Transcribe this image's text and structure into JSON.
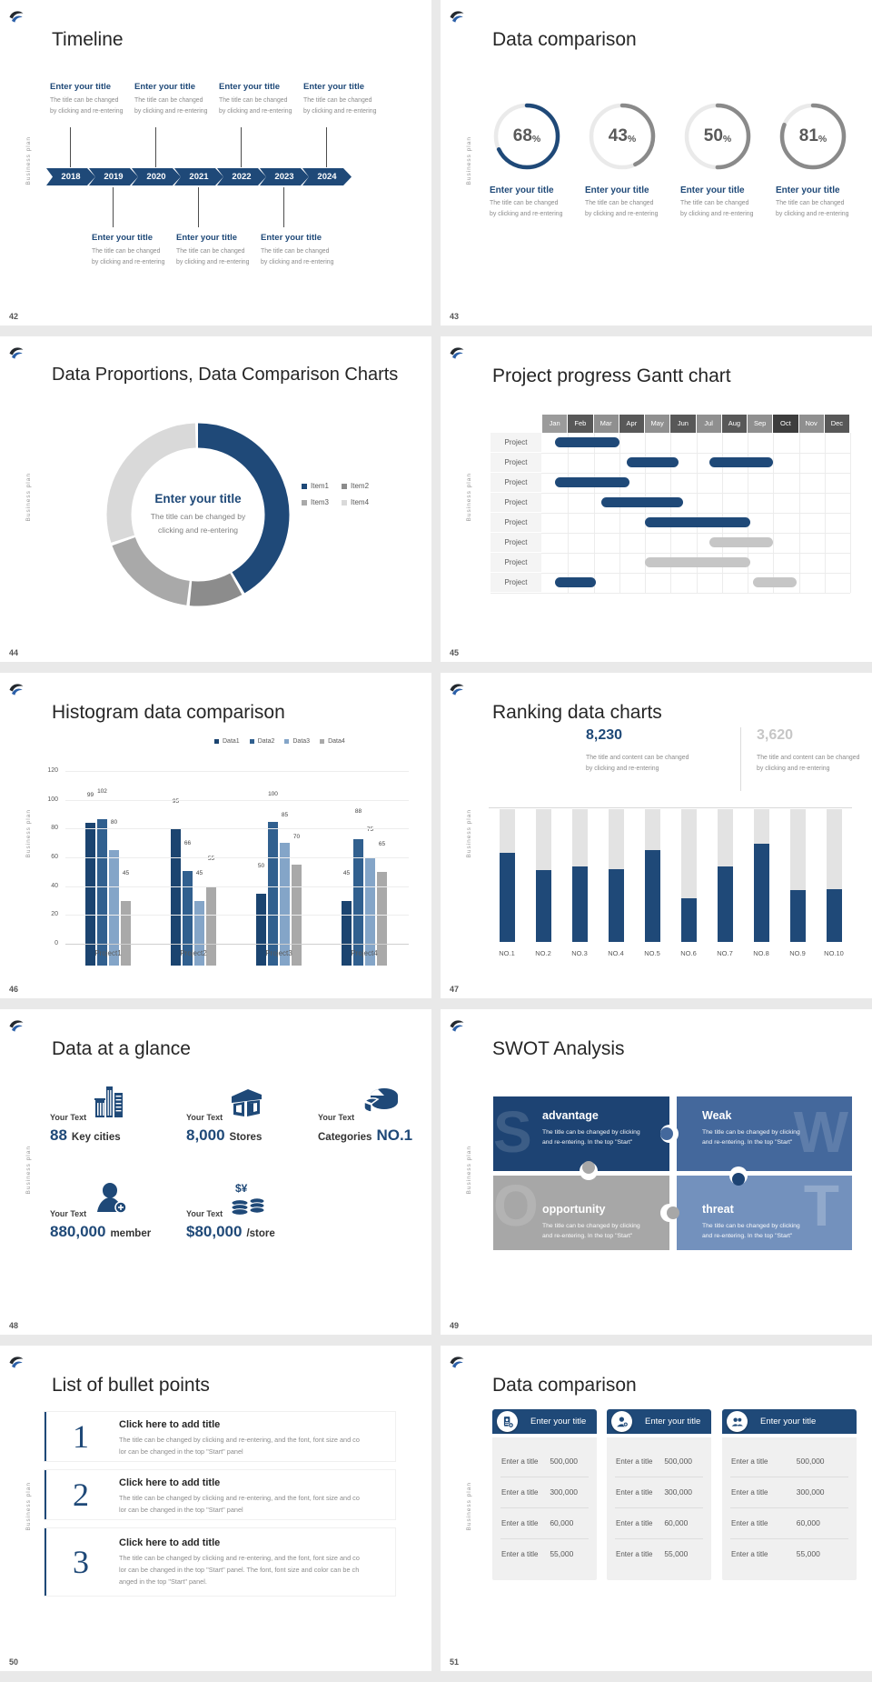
{
  "brand": {
    "vertical_label": "Business plan",
    "logo": "swoosh-logo"
  },
  "colors": {
    "navy": "#1f4978",
    "navy_dark": "#1d4373",
    "steel_blue": "#44689c",
    "light_steel": "#7391bd",
    "gantt_gray_bar": "#c6c6c6",
    "ring_gray": "#8a8a8a",
    "track_gray": "#e3e3e3"
  },
  "slides": {
    "s42": {
      "number": "42",
      "title": "Timeline",
      "years": [
        "2018",
        "2019",
        "2020",
        "2021",
        "2022",
        "2023",
        "2024"
      ],
      "item_title": "Enter your title",
      "item_body": [
        "The title can be changed",
        "by clicking and re-entering"
      ],
      "top_item_count": 4,
      "bottom_item_count": 3
    },
    "s43": {
      "number": "43",
      "title": "Data comparison",
      "rings": [
        {
          "percent": "68",
          "accent": true
        },
        {
          "percent": "43"
        },
        {
          "percent": "50"
        },
        {
          "percent": "81"
        }
      ],
      "item_title": "Enter your title",
      "item_body": [
        "The title can be changed",
        "by clicking and re-entering"
      ]
    },
    "s44": {
      "number": "44",
      "title": "Data Proportions, Data Comparison Charts",
      "center_title": "Enter your title",
      "center_body": [
        "The title can be changed by",
        "clicking and re-entering"
      ],
      "legend": [
        "Item1",
        "Item2",
        "Item3",
        "Item4"
      ],
      "values": [
        42,
        10,
        18,
        30
      ],
      "segment_colors": [
        "#1f4978",
        "#8c8c8c",
        "#a9a9a9",
        "#d9d9d9"
      ]
    },
    "s45": {
      "number": "45",
      "title": "Project progress Gantt chart",
      "months": [
        "Jan",
        "Feb",
        "Mar",
        "Apr",
        "May",
        "Jun",
        "Jul",
        "Aug",
        "Sep",
        "Oct",
        "Nov",
        "Dec"
      ],
      "month_colors": [
        "#9b9b9b",
        "#585858",
        "#8f8f8f",
        "#585858",
        "#8f8f8f",
        "#585858",
        "#8f8f8f",
        "#585858",
        "#8f8f8f",
        "#3d3d3d",
        "#8f8f8f",
        "#585858"
      ],
      "row_label": "Project",
      "rows": [
        [
          {
            "start": 0.5,
            "end": 3.0,
            "color": "navy"
          }
        ],
        [
          {
            "start": 3.3,
            "end": 5.3,
            "color": "navy"
          },
          {
            "start": 6.5,
            "end": 9.0,
            "color": "navy"
          }
        ],
        [
          {
            "start": 0.5,
            "end": 3.4,
            "color": "navy"
          }
        ],
        [
          {
            "start": 2.3,
            "end": 5.5,
            "color": "navy"
          }
        ],
        [
          {
            "start": 4.0,
            "end": 8.1,
            "color": "navy"
          }
        ],
        [
          {
            "start": 6.5,
            "end": 9.0,
            "color": "gray"
          }
        ],
        [
          {
            "start": 4.0,
            "end": 8.1,
            "color": "gray"
          }
        ],
        [
          {
            "start": 0.5,
            "end": 2.1,
            "color": "navy"
          },
          {
            "start": 8.2,
            "end": 9.9,
            "color": "gray"
          }
        ]
      ]
    },
    "s46": {
      "number": "46",
      "title": "Histogram data comparison",
      "legend": [
        "Data1",
        "Data2",
        "Data3",
        "Data4"
      ],
      "series_colors": [
        "#1b4470",
        "#31608f",
        "#84a5c8",
        "#a9a9a9"
      ],
      "categories": [
        "Project1",
        "Project2",
        "Project3",
        "Project4"
      ],
      "groups": [
        [
          99,
          102,
          80,
          45
        ],
        [
          95,
          66,
          45,
          55
        ],
        [
          50,
          100,
          85,
          70
        ],
        [
          45,
          88,
          75,
          65
        ]
      ],
      "y_ticks": [
        0,
        20,
        40,
        60,
        80,
        100,
        120
      ]
    },
    "s47": {
      "number": "47",
      "title": "Ranking data charts",
      "stat_primary": "8,230",
      "stat_secondary": "3,620",
      "caption": [
        "The title and content can be changed",
        "by clicking and re-entering"
      ],
      "categories": [
        "NO.1",
        "NO.2",
        "NO.3",
        "NO.4",
        "NO.5",
        "NO.6",
        "NO.7",
        "NO.8",
        "NO.9",
        "NO.10"
      ],
      "fill_percent": [
        67,
        54,
        57,
        55,
        69,
        33,
        57,
        74,
        39,
        40
      ]
    },
    "s48": {
      "number": "48",
      "title": "Data at a glance",
      "label": "Your Text",
      "stats": [
        {
          "icon": "city-buildings-icon",
          "value": "88",
          "suffix": "Key cities"
        },
        {
          "icon": "store-icon",
          "value": "8,000",
          "suffix": "Stores"
        },
        {
          "icon": "category-pie-icon",
          "prefix": "Categories",
          "value": "NO.1"
        },
        {
          "icon": "member-add-icon",
          "value": "880,000",
          "suffix": "member"
        },
        {
          "icon": "coins-icon",
          "value": "$80,000",
          "suffix": "/store"
        }
      ]
    },
    "s49": {
      "number": "49",
      "title": "SWOT Analysis",
      "quadrants": [
        {
          "letter": "S",
          "heading": "advantage",
          "body": [
            "The title can be changed by clicking",
            "and re-entering. In the top \"Start\""
          ]
        },
        {
          "letter": "W",
          "heading": "Weak",
          "body": [
            "The title can be changed by clicking",
            "and re-entering. In the top \"Start\""
          ]
        },
        {
          "letter": "O",
          "heading": "opportunity",
          "body": [
            "The title can be changed by clicking",
            "and re-entering. In the top \"Start\""
          ]
        },
        {
          "letter": "T",
          "heading": "threat",
          "body": [
            "The title can be changed by clicking",
            "and re-entering. In the top \"Start\""
          ]
        }
      ]
    },
    "s50": {
      "number": "50",
      "title": "List of bullet points",
      "heading": "Click here to add title",
      "items": [
        {
          "num": "1",
          "body": [
            "The title can be changed by clicking and re-entering, and the font, font size and co",
            "lor can be changed in the top \"Start\" panel"
          ]
        },
        {
          "num": "2",
          "body": [
            "The title can be changed by clicking and re-entering, and the font, font size and co",
            "lor can be changed in the top \"Start\" panel"
          ]
        },
        {
          "num": "3",
          "body": [
            "The title can be changed by clicking and re-entering, and the font, font size and co",
            "lor can be changed in the top \"Start\" panel. The font, font size and color can be ch",
            "anged in the top \"Start\" panel."
          ]
        }
      ]
    },
    "s51": {
      "number": "51",
      "title": "Data comparison",
      "card_header": "Enter your title",
      "row_label": "Enter a title",
      "values": [
        "500,000",
        "300,000",
        "60,000",
        "55,000"
      ],
      "card_icons": [
        "id-badge-icon",
        "person-add-icon",
        "people-icon"
      ]
    }
  }
}
